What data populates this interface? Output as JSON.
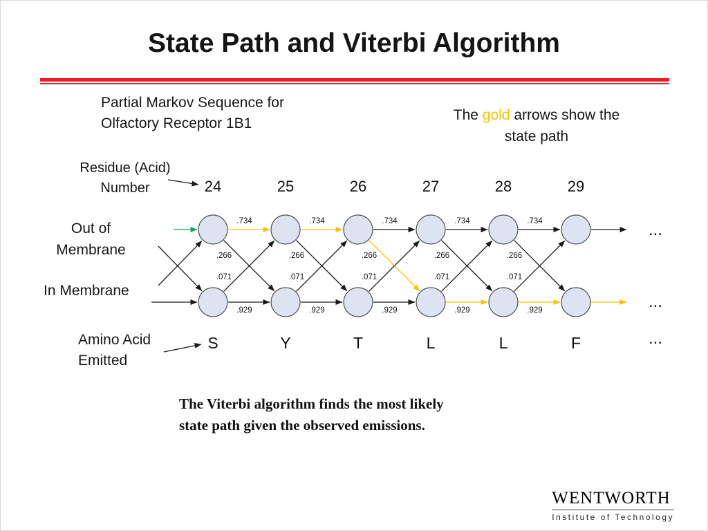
{
  "slide": {
    "title": "State Path and Viterbi Algorithm",
    "subtitle": {
      "line1": "Partial Markov Sequence for",
      "line2": "Olfactory Receptor 1B1"
    },
    "gold_note": {
      "pre": "The ",
      "gold_word": "gold",
      "post": " arrows show the",
      "line2": "state path"
    },
    "caption": {
      "line1": "The Viterbi algorithm finds the most likely",
      "line2": "state path given the observed emissions."
    },
    "logo": {
      "name": "WENTWORTH",
      "subtitle": "Institute of Technology"
    }
  },
  "labels": {
    "residue": {
      "line1": "Residue (Acid)",
      "line2": "Number"
    },
    "out_membrane": {
      "line1": "Out of",
      "line2": "Membrane"
    },
    "in_membrane": "In Membrane",
    "amino": {
      "line1": "Amino Acid",
      "line2": "Emitted"
    }
  },
  "trellis": {
    "residue_numbers": [
      "24",
      "25",
      "26",
      "27",
      "28",
      "29"
    ],
    "emissions": [
      "S",
      "Y",
      "T",
      "L",
      "L",
      "F"
    ],
    "transition_labels": {
      "stay_out": ".734",
      "out_to_in": ".266",
      "in_to_out": ".071",
      "stay_in": ".929"
    },
    "ellipsis": "...",
    "gold_path": {
      "top_segments": [
        0,
        1
      ],
      "down_segment": 2,
      "bottom_segments": [
        3,
        4
      ],
      "exit": "bottom"
    },
    "colors": {
      "gold": "#FFC000",
      "green": "#00B050",
      "edge": "#1a1a1a",
      "node_fill": "#dde3f1",
      "node_stroke": "#4d4d4d",
      "accent_red": "#EC1C24",
      "accent_red_dark": "#B3121A"
    }
  }
}
